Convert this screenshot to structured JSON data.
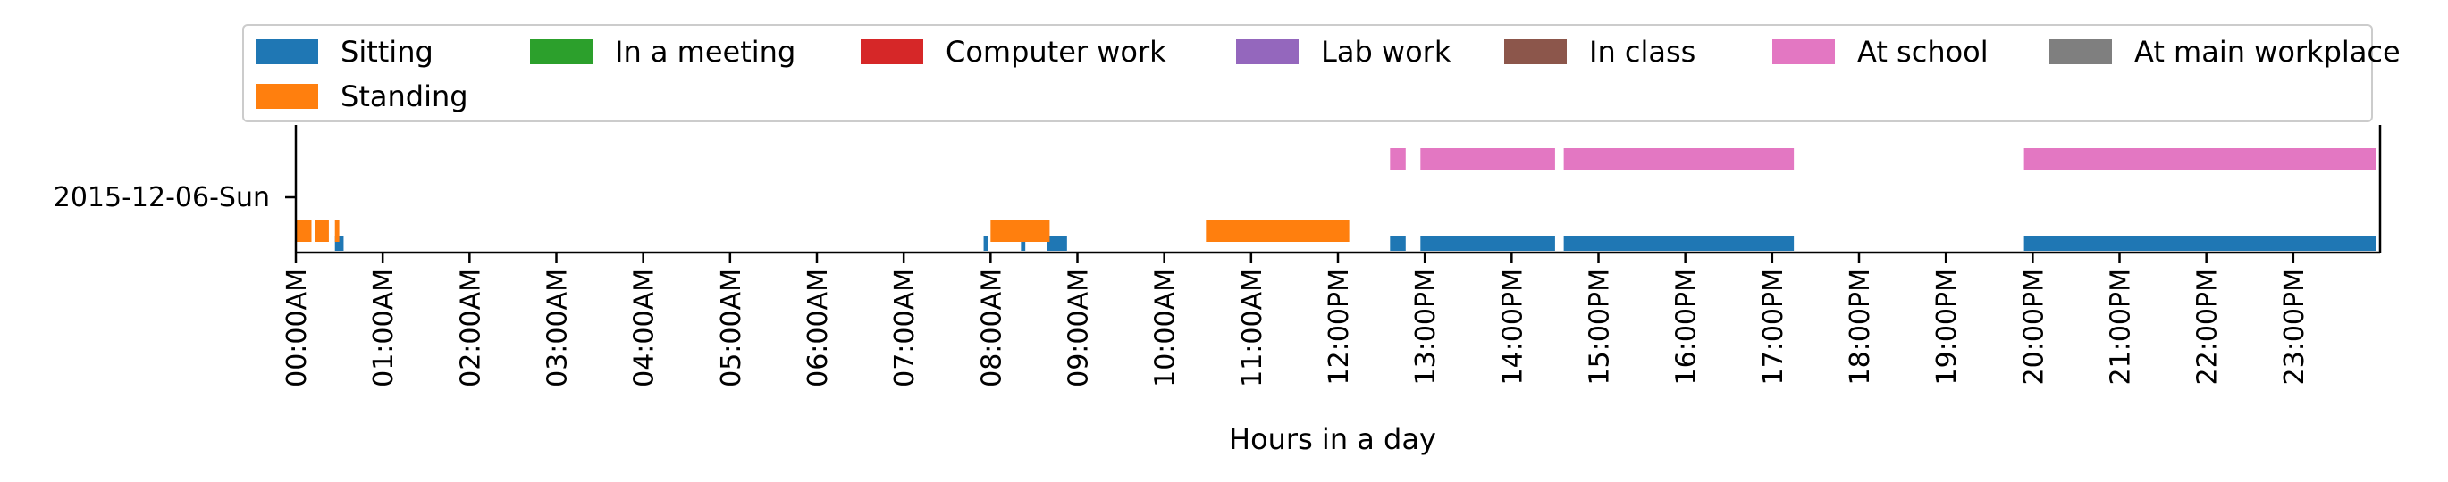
{
  "chart_data": {
    "type": "timeline",
    "xlabel": "Hours in a day",
    "ylabel": "",
    "xlim": [
      0,
      24
    ],
    "x_tick_labels": [
      "00:00AM",
      "01:00AM",
      "02:00AM",
      "03:00AM",
      "04:00AM",
      "05:00AM",
      "06:00AM",
      "07:00AM",
      "08:00AM",
      "09:00AM",
      "10:00AM",
      "11:00AM",
      "12:00PM",
      "13:00PM",
      "14:00PM",
      "15:00PM",
      "16:00PM",
      "17:00PM",
      "18:00PM",
      "19:00PM",
      "20:00PM",
      "21:00PM",
      "22:00PM",
      "23:00PM"
    ],
    "y_tick_labels": [
      "2015-12-06-Sun"
    ],
    "legend_placement": "top",
    "legend": [
      {
        "name": "Sitting",
        "color": "#1f77b4"
      },
      {
        "name": "Standing",
        "color": "#ff7f0e"
      },
      {
        "name": "In a meeting",
        "color": "#2ca02c"
      },
      {
        "name": "Computer work",
        "color": "#d62728"
      },
      {
        "name": "Lab work",
        "color": "#9467bd"
      },
      {
        "name": "In class",
        "color": "#8c564b"
      },
      {
        "name": "At school",
        "color": "#e377c2"
      },
      {
        "name": "At main workplace",
        "color": "#7f7f7f"
      }
    ],
    "series": [
      {
        "name": "Sitting",
        "lane": 0,
        "intervals": [
          [
            0.45,
            0.55
          ],
          [
            7.92,
            7.97
          ],
          [
            8.35,
            8.4
          ],
          [
            8.65,
            8.88
          ],
          [
            12.6,
            12.78
          ],
          [
            12.95,
            14.5
          ],
          [
            14.6,
            17.25
          ],
          [
            19.9,
            23.95
          ]
        ]
      },
      {
        "name": "Standing",
        "lane": 1,
        "intervals": [
          [
            0.0,
            0.18
          ],
          [
            0.22,
            0.38
          ],
          [
            0.45,
            0.5
          ],
          [
            8.0,
            8.68
          ],
          [
            10.48,
            12.13
          ]
        ]
      },
      {
        "name": "At school",
        "lane": 2,
        "intervals": [
          [
            12.6,
            12.78
          ],
          [
            12.95,
            14.5
          ],
          [
            14.6,
            17.25
          ],
          [
            19.9,
            23.95
          ]
        ]
      }
    ]
  }
}
